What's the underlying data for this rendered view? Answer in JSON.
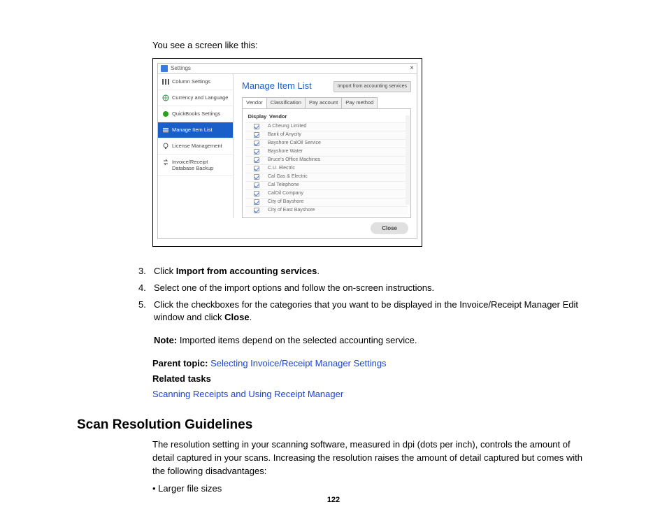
{
  "intro": "You see a screen like this:",
  "dialog": {
    "title": "Settings",
    "close_x": "×",
    "sidebar": [
      {
        "label": "Column Settings",
        "icon": "columns"
      },
      {
        "label": "Currency and Language",
        "icon": "globe"
      },
      {
        "label": "QuickBooks Settings",
        "icon": "qb"
      },
      {
        "label": "Manage Item List",
        "icon": "list"
      },
      {
        "label": "License Management",
        "icon": "bulb"
      },
      {
        "label": "Invoice/Receipt Database Backup",
        "icon": "arrows"
      }
    ],
    "active_index": 3,
    "main_title": "Manage Item List",
    "import_button": "Import from accounting services",
    "tabs": [
      "Vendor",
      "Classification",
      "Pay account",
      "Pay method"
    ],
    "active_tab": 0,
    "grid_headers": [
      "Display",
      "Vendor"
    ],
    "vendors": [
      "A Cheung Limited",
      "Bank of Anycity",
      "Bayshore CalOil Service",
      "Bayshore Water",
      "Bruce's Office Machines",
      "C.U. Electric",
      "Cal Gas & Electric",
      "Cal Telephone",
      "CalOil Company",
      "City of Bayshore",
      "City of East Bayshore"
    ],
    "close_button": "Close"
  },
  "steps": [
    {
      "n": "3.",
      "pre": "Click ",
      "bold": "Import from accounting services",
      "post": "."
    },
    {
      "n": "4.",
      "pre": "Select one of the import options and follow the on-screen instructions.",
      "bold": "",
      "post": ""
    },
    {
      "n": "5.",
      "pre": "Click the checkboxes for the categories that you want to be displayed in the Invoice/Receipt Manager Edit window and click ",
      "bold": "Close",
      "post": "."
    }
  ],
  "note_label": "Note:",
  "note_text": " Imported items depend on the selected accounting service.",
  "parent_topic_label": "Parent topic: ",
  "parent_topic_link": "Selecting Invoice/Receipt Manager Settings",
  "related_label": "Related tasks",
  "related_link": "Scanning Receipts and Using Receipt Manager",
  "section_heading": "Scan Resolution Guidelines",
  "section_para": "The resolution setting in your scanning software, measured in dpi (dots per inch), controls the amount of detail captured in your scans. Increasing the resolution raises the amount of detail captured but comes with the following disadvantages:",
  "bullet_1": "Larger file sizes",
  "page_number": "122",
  "colors": {
    "link": "#1a3fe0",
    "accent": "#1a5fc9"
  }
}
